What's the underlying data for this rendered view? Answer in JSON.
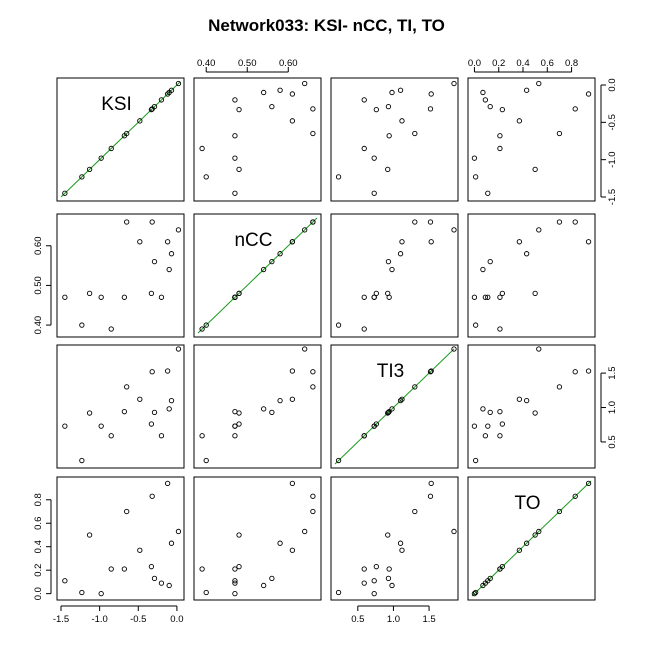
{
  "title": "Network033: KSI- nCC, TI, TO",
  "chart_data": {
    "type": "scatter",
    "title": "Network033: KSI- nCC, TI, TO",
    "kind": "scatterplot-matrix",
    "variables": [
      "KSI",
      "nCC",
      "TI3",
      "TO"
    ],
    "ranges": {
      "KSI": [
        -1.5,
        0.04
      ],
      "nCC": [
        0.38,
        0.67
      ],
      "TI3": [
        0.18,
        1.85
      ],
      "TO": [
        -0.02,
        0.96
      ]
    },
    "axis_ticks": {
      "KSI": [
        -1.5,
        -1.0,
        -0.5,
        0.0
      ],
      "nCC": [
        0.4,
        0.5,
        0.6
      ],
      "TI3": [
        0.5,
        1.0,
        1.5
      ],
      "TO": [
        0.0,
        0.2,
        0.4,
        0.6,
        0.8
      ]
    },
    "tick_labels": {
      "KSI": [
        "-1.5",
        "-1.0",
        "-0.5",
        "0.0"
      ],
      "nCC": [
        "0.40",
        "0.50",
        "0.60"
      ],
      "TI3": [
        "0.5",
        "1.0",
        "1.5"
      ],
      "TO": [
        "0.0",
        "0.2",
        "0.4",
        "0.6",
        "0.8"
      ]
    },
    "axis_sides": {
      "top": [
        "nCC",
        "TO"
      ],
      "bottom": [
        "KSI",
        "TI3"
      ],
      "right": [
        "KSI",
        "TI3"
      ],
      "left": [
        "nCC",
        "TO"
      ]
    },
    "points": [
      {
        "KSI": -1.45,
        "nCC": 0.47,
        "TI3": 0.73,
        "TO": 0.11
      },
      {
        "KSI": -1.23,
        "nCC": 0.4,
        "TI3": 0.23,
        "TO": 0.01
      },
      {
        "KSI": -1.13,
        "nCC": 0.48,
        "TI3": 0.92,
        "TO": 0.5
      },
      {
        "KSI": -0.98,
        "nCC": 0.47,
        "TI3": 0.73,
        "TO": 0.0
      },
      {
        "KSI": -0.85,
        "nCC": 0.39,
        "TI3": 0.59,
        "TO": 0.21
      },
      {
        "KSI": -0.68,
        "nCC": 0.47,
        "TI3": 0.94,
        "TO": 0.21
      },
      {
        "KSI": -0.65,
        "nCC": 0.66,
        "TI3": 1.3,
        "TO": 0.7
      },
      {
        "KSI": -0.48,
        "nCC": 0.61,
        "TI3": 1.12,
        "TO": 0.37
      },
      {
        "KSI": -0.33,
        "nCC": 0.48,
        "TI3": 0.76,
        "TO": 0.23
      },
      {
        "KSI": -0.32,
        "nCC": 0.66,
        "TI3": 1.52,
        "TO": 0.83
      },
      {
        "KSI": -0.29,
        "nCC": 0.56,
        "TI3": 0.93,
        "TO": 0.13
      },
      {
        "KSI": -0.2,
        "nCC": 0.47,
        "TI3": 0.59,
        "TO": 0.09
      },
      {
        "KSI": -0.12,
        "nCC": 0.61,
        "TI3": 1.53,
        "TO": 0.94
      },
      {
        "KSI": -0.1,
        "nCC": 0.54,
        "TI3": 0.98,
        "TO": 0.07
      },
      {
        "KSI": -0.07,
        "nCC": 0.58,
        "TI3": 1.1,
        "TO": 0.43
      },
      {
        "KSI": 0.02,
        "nCC": 0.64,
        "TI3": 1.85,
        "TO": 0.53
      }
    ],
    "diagonal_line_color": "#1a9a1a",
    "grid": false,
    "legend": "none"
  }
}
